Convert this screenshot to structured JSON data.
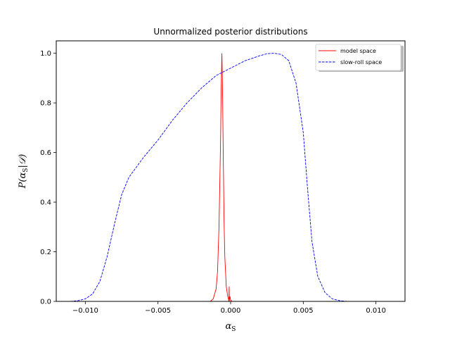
{
  "chart_data": {
    "type": "line",
    "title": "Unnormalized posterior distributions",
    "xlabel": "αS",
    "ylabel": "P(αS|D)",
    "xlim": [
      -0.012,
      0.012
    ],
    "ylim": [
      0.0,
      1.05
    ],
    "xticks": [
      -0.01,
      -0.005,
      0.0,
      0.005,
      0.01
    ],
    "xtick_labels": [
      "−0.010",
      "−0.005",
      "0.000",
      "0.005",
      "0.010"
    ],
    "yticks": [
      0.0,
      0.2,
      0.4,
      0.6,
      0.8,
      1.0
    ],
    "ytick_labels": [
      "0.0",
      "0.2",
      "0.4",
      "0.6",
      "0.8",
      "1.0"
    ],
    "grid": false,
    "legend_position": "top-right",
    "series": [
      {
        "name": "model space",
        "color": "#ff0000",
        "linestyle": "solid",
        "x": [
          -0.0014,
          -0.0012,
          -0.001,
          -0.0009,
          -0.0008,
          -0.0007,
          -0.00065,
          -0.0006,
          -0.00055,
          -0.0005,
          -0.00045,
          -0.0004,
          -0.0003,
          -0.0002,
          -0.00015,
          -0.00012,
          -0.0001,
          -9e-05,
          -8e-05,
          -6e-05,
          -4e-05,
          -2e-05,
          0.0,
          0.0001,
          0.0003
        ],
        "y": [
          0.0,
          0.01,
          0.05,
          0.12,
          0.3,
          0.62,
          0.85,
          1.0,
          0.82,
          0.55,
          0.32,
          0.18,
          0.06,
          0.02,
          0.01,
          0.0,
          0.06,
          0.0,
          0.015,
          0.01,
          0.02,
          0.01,
          0.005,
          0.0,
          0.0
        ]
      },
      {
        "name": "slow-roll space",
        "color": "#0000ff",
        "linestyle": "dashed",
        "x": [
          -0.012,
          -0.011,
          -0.0105,
          -0.01,
          -0.0095,
          -0.009,
          -0.0085,
          -0.008,
          -0.0075,
          -0.007,
          -0.0065,
          -0.006,
          -0.005,
          -0.004,
          -0.003,
          -0.002,
          -0.001,
          0.0,
          0.001,
          0.002,
          0.0025,
          0.003,
          0.0035,
          0.004,
          0.0045,
          0.005,
          0.0053,
          0.0056,
          0.006,
          0.0065,
          0.007,
          0.0075,
          0.008,
          0.009,
          0.012
        ],
        "y": [
          0.0,
          0.0,
          0.003,
          0.01,
          0.03,
          0.08,
          0.18,
          0.31,
          0.43,
          0.5,
          0.54,
          0.58,
          0.65,
          0.73,
          0.8,
          0.86,
          0.91,
          0.94,
          0.97,
          0.99,
          0.998,
          1.0,
          0.995,
          0.97,
          0.88,
          0.68,
          0.45,
          0.24,
          0.1,
          0.035,
          0.01,
          0.003,
          0.0,
          0.0,
          0.0
        ]
      }
    ]
  }
}
